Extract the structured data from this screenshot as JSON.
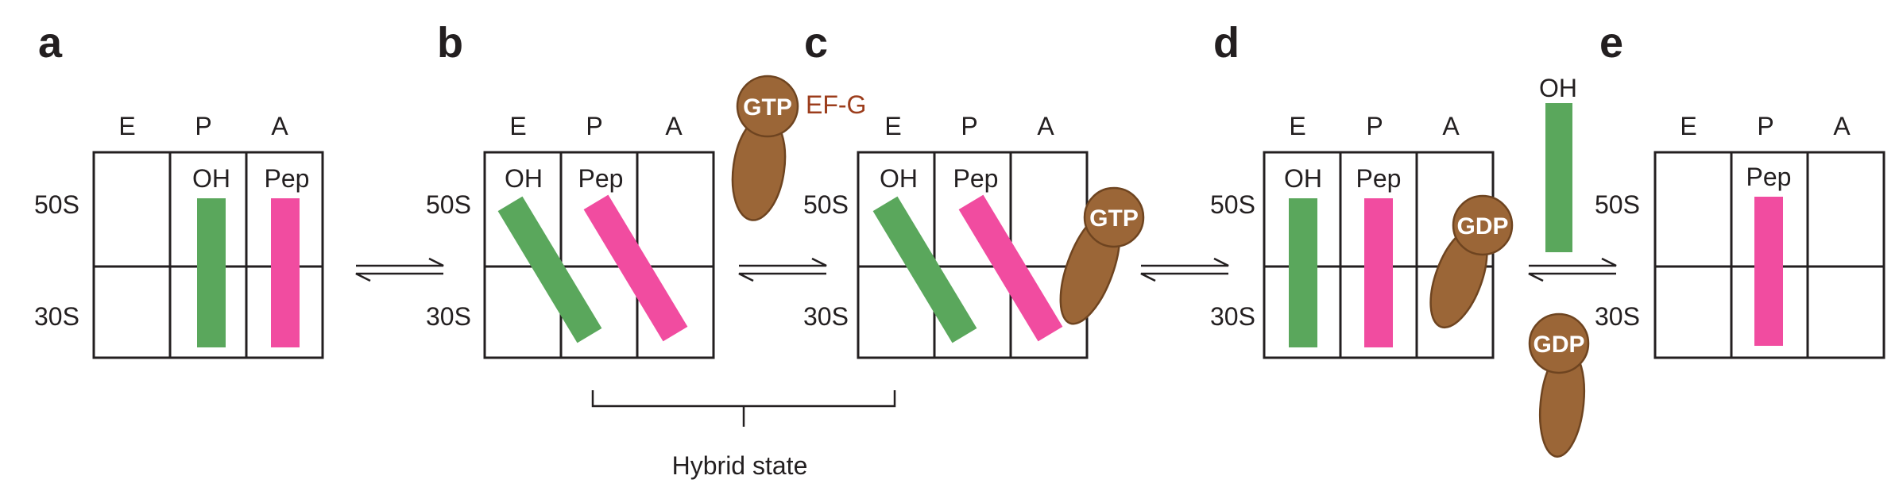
{
  "panels": [
    {
      "letter": "a",
      "sites": [
        "E",
        "P",
        "A"
      ],
      "subunits": [
        "50S",
        "30S"
      ],
      "trnas": [
        "OH",
        "Pep"
      ]
    },
    {
      "letter": "b",
      "sites": [
        "E",
        "P",
        "A"
      ],
      "subunits": [
        "50S",
        "30S"
      ],
      "trnas": [
        "OH",
        "Pep"
      ]
    },
    {
      "letter": "c",
      "sites": [
        "E",
        "P",
        "A"
      ],
      "subunits": [
        "50S",
        "30S"
      ],
      "trnas": [
        "OH",
        "Pep"
      ]
    },
    {
      "letter": "d",
      "sites": [
        "E",
        "P",
        "A"
      ],
      "subunits": [
        "50S",
        "30S"
      ],
      "trnas": [
        "OH",
        "Pep"
      ]
    },
    {
      "letter": "e",
      "sites": [
        "E",
        "P",
        "A"
      ],
      "subunits": [
        "50S",
        "30S"
      ],
      "trnas": [
        "Pep"
      ]
    }
  ],
  "ef_g": {
    "name": "EF-G",
    "nucleotides": [
      "GTP",
      "GTP",
      "GDP",
      "GDP"
    ],
    "body_color": "#9b6637"
  },
  "released_trna": {
    "label": "OH"
  },
  "hybrid_state": {
    "label": "Hybrid state"
  },
  "colors": {
    "oh_trna": "#5aa75c",
    "pep_trna": "#f14ca0",
    "ef_g_label": "#9c3d1c"
  }
}
